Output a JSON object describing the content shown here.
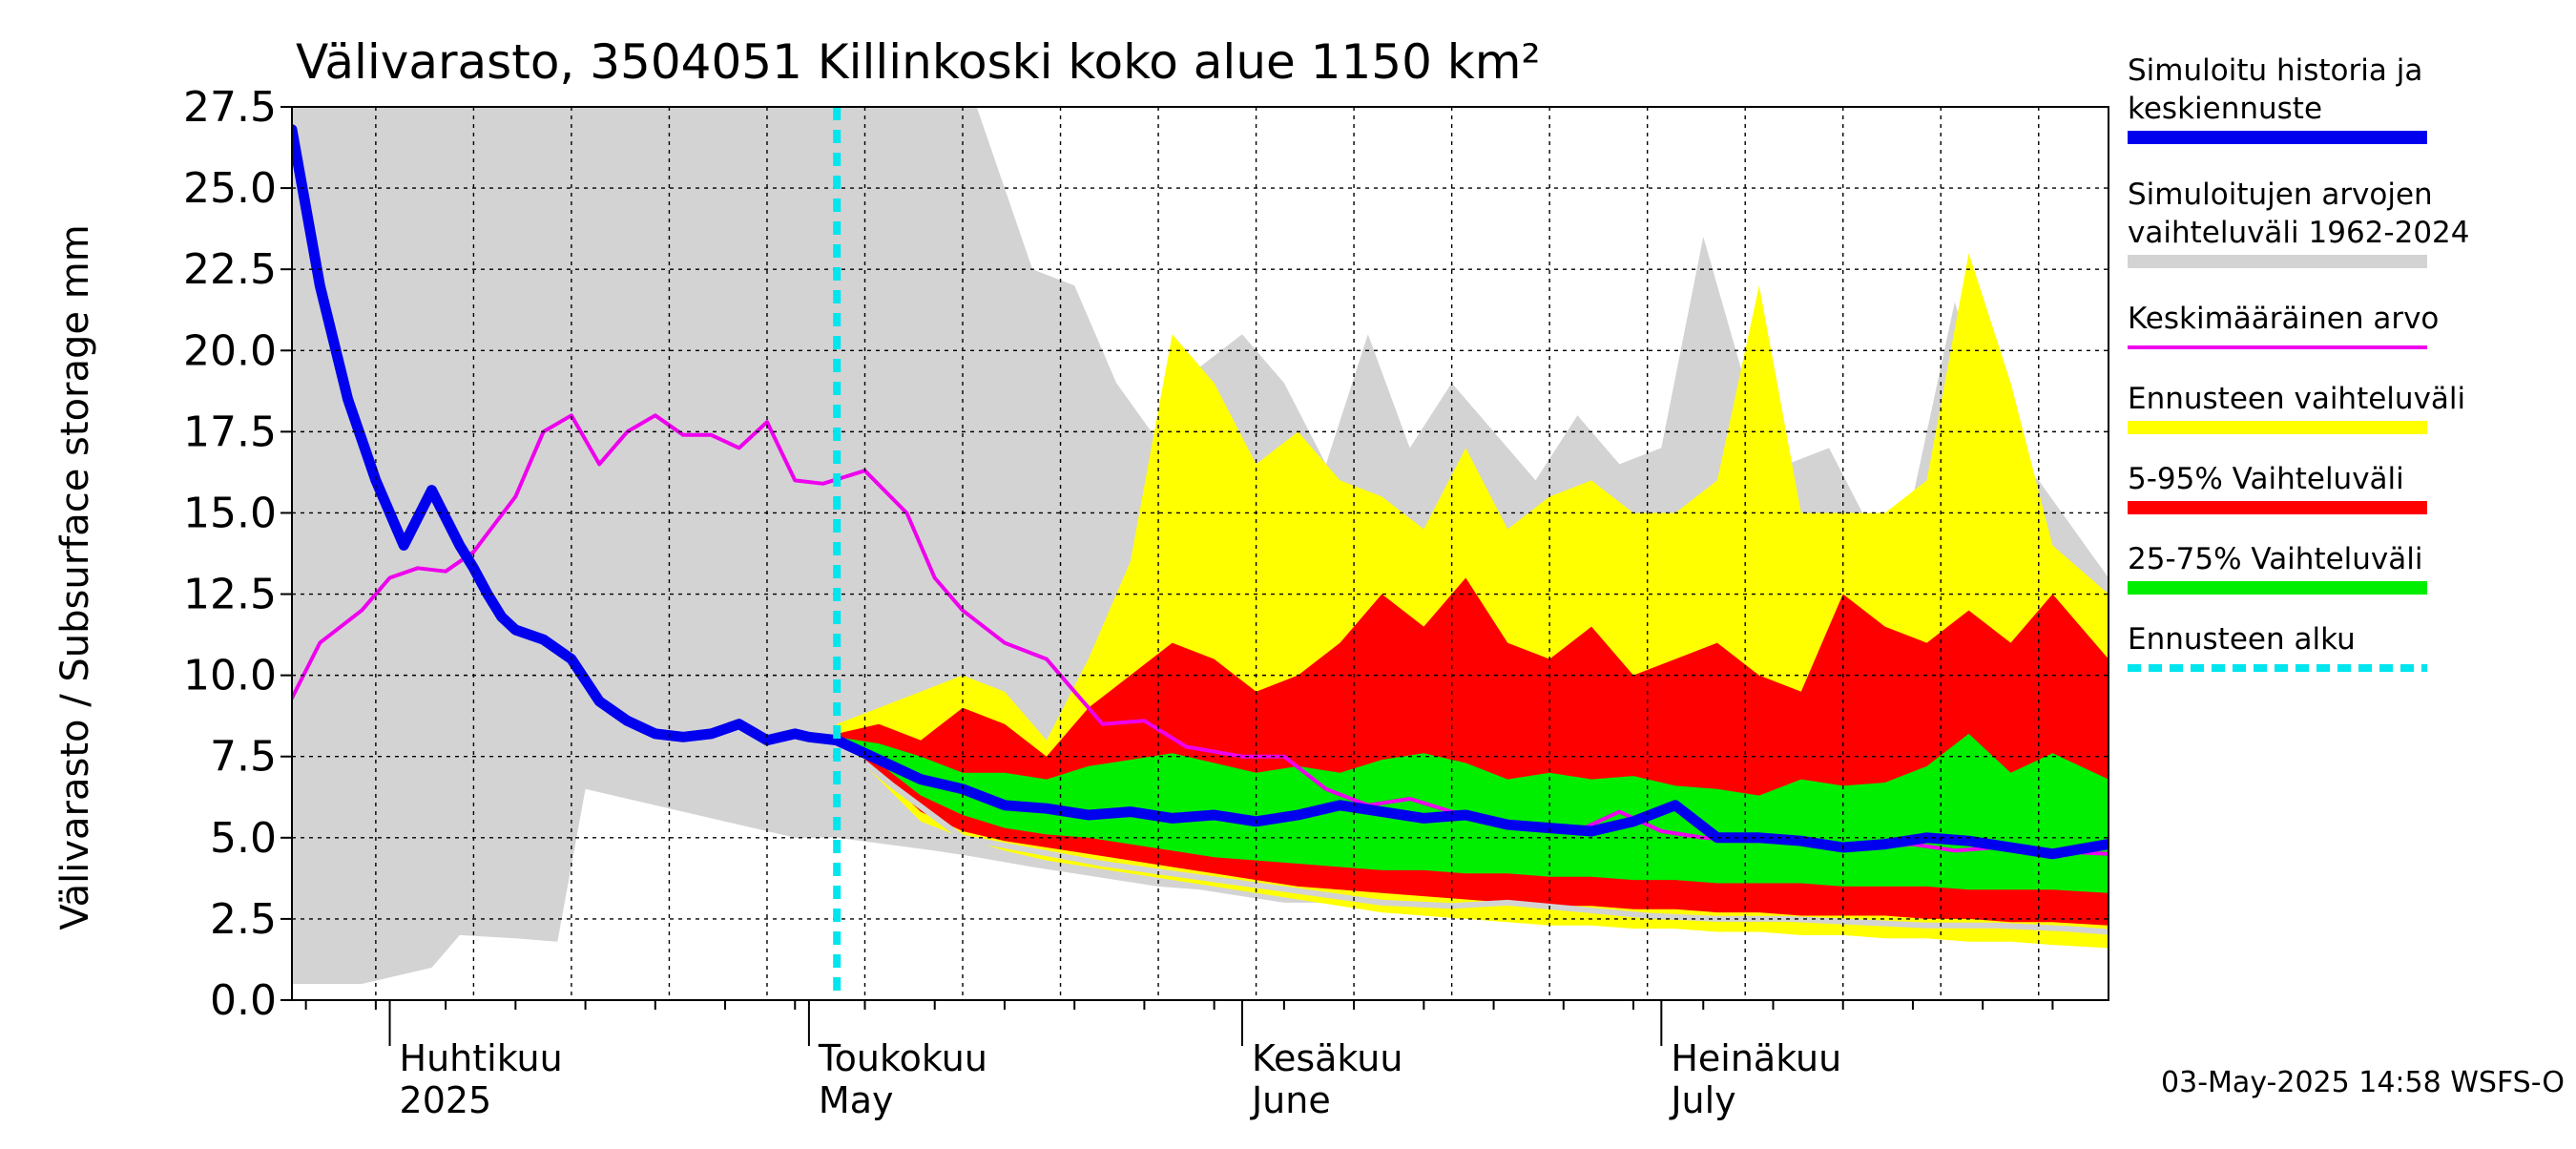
{
  "chart_data": {
    "type": "area",
    "title": "Välivarasto, 3504051 Killinkoski koko alue 1150 km²",
    "ylabel": "Välivarasto / Subsurface storage  mm",
    "ylim": [
      0,
      27.5
    ],
    "yticks": [
      0.0,
      2.5,
      5.0,
      7.5,
      10.0,
      12.5,
      15.0,
      17.5,
      20.0,
      22.5,
      25.0,
      27.5
    ],
    "ytick_labels": [
      "0.0",
      "2.5",
      "5.0",
      "7.5",
      "10.0",
      "12.5",
      "15.0",
      "17.5",
      "20.0",
      "22.5",
      "25.0",
      "27.5"
    ],
    "xlim": [
      "2025-03-25",
      "2025-08-02"
    ],
    "month_labels": [
      {
        "date": "2025-04-01",
        "fi": "Huhtikuu",
        "en": "2025"
      },
      {
        "date": "2025-05-01",
        "fi": "Toukokuu",
        "en": "May"
      },
      {
        "date": "2025-06-01",
        "fi": "Kesäkuu",
        "en": "June"
      },
      {
        "date": "2025-07-01",
        "fi": "Heinäkuu",
        "en": "July"
      }
    ],
    "forecast_start": "2025-05-03",
    "grid": true,
    "legend_position": "right",
    "legend": [
      {
        "label_lines": [
          "Simuloitu historia ja",
          "keskiennuste"
        ],
        "color": "#0000ee",
        "style": "thick-line"
      },
      {
        "label_lines": [
          "Simuloitujen arvojen",
          "vaihteluväli 1962-2024"
        ],
        "color": "#d3d3d3",
        "style": "band"
      },
      {
        "label_lines": [
          "Keskimääräinen arvo"
        ],
        "color": "#ee00ee",
        "style": "line"
      },
      {
        "label_lines": [
          "Ennusteen vaihteluväli"
        ],
        "color": "#ffff00",
        "style": "band"
      },
      {
        "label_lines": [
          "5-95% Vaihteluväli"
        ],
        "color": "#ff0000",
        "style": "band"
      },
      {
        "label_lines": [
          "25-75% Vaihteluväli"
        ],
        "color": "#00ee00",
        "style": "band"
      },
      {
        "label_lines": [
          "Ennusteen alku"
        ],
        "color": "#00e5ee",
        "style": "dashed"
      }
    ],
    "series": [
      {
        "name": "Simuloitujen arvojen vaihteluväli 1962-2024",
        "type": "band",
        "color": "#d3d3d3",
        "x": [
          "2025-03-25",
          "2025-03-30",
          "2025-04-04",
          "2025-04-06",
          "2025-04-10",
          "2025-04-13",
          "2025-04-15",
          "2025-04-30",
          "2025-05-03",
          "2025-05-10",
          "2025-05-13",
          "2025-05-17",
          "2025-05-20",
          "2025-05-23",
          "2025-05-26",
          "2025-05-29",
          "2025-06-01",
          "2025-06-04",
          "2025-06-07",
          "2025-06-10",
          "2025-06-13",
          "2025-06-16",
          "2025-06-19",
          "2025-06-22",
          "2025-06-25",
          "2025-06-28",
          "2025-07-01",
          "2025-07-04",
          "2025-07-07",
          "2025-07-10",
          "2025-07-13",
          "2025-07-16",
          "2025-07-19",
          "2025-07-22",
          "2025-07-25",
          "2025-07-28",
          "2025-08-02"
        ],
        "low": [
          0.5,
          0.5,
          1.0,
          2.0,
          1.9,
          1.8,
          6.5,
          5.0,
          5.0,
          4.6,
          4.4,
          4.1,
          3.9,
          3.7,
          3.5,
          3.4,
          3.2,
          3.0,
          3.0,
          2.9,
          2.8,
          2.7,
          2.6,
          2.5,
          2.4,
          2.4,
          2.4,
          2.3,
          2.3,
          2.2,
          2.2,
          2.1,
          2.0,
          2.0,
          1.9,
          1.9,
          1.8
        ],
        "high": [
          27.5,
          27.5,
          27.5,
          27.5,
          27.5,
          27.5,
          27.5,
          27.5,
          27.5,
          27.5,
          27.5,
          22.5,
          22.0,
          19.0,
          17.2,
          19.5,
          20.5,
          19.0,
          16.5,
          20.5,
          17.0,
          19.0,
          17.5,
          16.0,
          18.0,
          16.5,
          17.0,
          23.5,
          19.0,
          16.5,
          17.0,
          14.5,
          15.5,
          21.5,
          17.0,
          16.0,
          13.0
        ]
      },
      {
        "name": "Ennusteen vaihteluväli",
        "type": "band",
        "color": "#ffff00",
        "x": [
          "2025-05-03",
          "2025-05-06",
          "2025-05-09",
          "2025-05-12",
          "2025-05-15",
          "2025-05-18",
          "2025-05-21",
          "2025-05-24",
          "2025-05-27",
          "2025-05-30",
          "2025-06-02",
          "2025-06-05",
          "2025-06-08",
          "2025-06-11",
          "2025-06-14",
          "2025-06-17",
          "2025-06-20",
          "2025-06-23",
          "2025-06-26",
          "2025-06-29",
          "2025-07-02",
          "2025-07-05",
          "2025-07-08",
          "2025-07-11",
          "2025-07-14",
          "2025-07-17",
          "2025-07-20",
          "2025-07-23",
          "2025-07-26",
          "2025-07-29",
          "2025-08-02"
        ],
        "low": [
          8.0,
          6.8,
          5.5,
          5.0,
          4.6,
          4.3,
          4.1,
          3.9,
          3.7,
          3.5,
          3.3,
          3.1,
          2.9,
          2.7,
          2.6,
          2.5,
          2.4,
          2.3,
          2.3,
          2.2,
          2.2,
          2.1,
          2.1,
          2.0,
          2.0,
          1.9,
          1.9,
          1.8,
          1.8,
          1.7,
          1.6
        ],
        "high": [
          8.5,
          9.0,
          9.5,
          10.0,
          9.5,
          8.0,
          10.5,
          13.5,
          20.5,
          19.0,
          16.5,
          17.5,
          16.0,
          15.5,
          14.5,
          17.0,
          14.5,
          15.5,
          16.0,
          15.0,
          15.0,
          16.0,
          22.0,
          15.0,
          15.0,
          15.0,
          16.0,
          23.0,
          19.0,
          14.0,
          12.5
        ]
      },
      {
        "name": "5-95% Vaihteluväli",
        "type": "band",
        "color": "#ff0000",
        "x": [
          "2025-05-03",
          "2025-05-06",
          "2025-05-09",
          "2025-05-12",
          "2025-05-15",
          "2025-05-18",
          "2025-05-21",
          "2025-05-24",
          "2025-05-27",
          "2025-05-30",
          "2025-06-02",
          "2025-06-05",
          "2025-06-08",
          "2025-06-11",
          "2025-06-14",
          "2025-06-17",
          "2025-06-20",
          "2025-06-23",
          "2025-06-26",
          "2025-06-29",
          "2025-07-02",
          "2025-07-05",
          "2025-07-08",
          "2025-07-11",
          "2025-07-14",
          "2025-07-17",
          "2025-07-20",
          "2025-07-23",
          "2025-07-26",
          "2025-07-29",
          "2025-08-02"
        ],
        "low": [
          8.0,
          7.0,
          5.8,
          5.2,
          4.9,
          4.7,
          4.5,
          4.3,
          4.1,
          3.9,
          3.7,
          3.5,
          3.4,
          3.3,
          3.2,
          3.1,
          3.0,
          2.9,
          2.9,
          2.8,
          2.8,
          2.7,
          2.7,
          2.6,
          2.6,
          2.6,
          2.5,
          2.5,
          2.4,
          2.4,
          2.3
        ],
        "high": [
          8.2,
          8.5,
          8.0,
          9.0,
          8.5,
          7.5,
          9.0,
          10.0,
          11.0,
          10.5,
          9.5,
          10.0,
          11.0,
          12.5,
          11.5,
          13.0,
          11.0,
          10.5,
          11.5,
          10.0,
          10.5,
          11.0,
          10.0,
          9.5,
          12.5,
          11.5,
          11.0,
          12.0,
          11.0,
          12.5,
          10.5
        ]
      },
      {
        "name": "25-75% Vaihteluväli",
        "type": "band",
        "color": "#00ee00",
        "x": [
          "2025-05-03",
          "2025-05-06",
          "2025-05-09",
          "2025-05-12",
          "2025-05-15",
          "2025-05-18",
          "2025-05-21",
          "2025-05-24",
          "2025-05-27",
          "2025-05-30",
          "2025-06-02",
          "2025-06-05",
          "2025-06-08",
          "2025-06-11",
          "2025-06-14",
          "2025-06-17",
          "2025-06-20",
          "2025-06-23",
          "2025-06-26",
          "2025-06-29",
          "2025-07-02",
          "2025-07-05",
          "2025-07-08",
          "2025-07-11",
          "2025-07-14",
          "2025-07-17",
          "2025-07-20",
          "2025-07-23",
          "2025-07-26",
          "2025-07-29",
          "2025-08-02"
        ],
        "low": [
          8.0,
          7.3,
          6.3,
          5.7,
          5.3,
          5.1,
          5.0,
          4.8,
          4.6,
          4.4,
          4.3,
          4.2,
          4.1,
          4.0,
          4.0,
          3.9,
          3.9,
          3.8,
          3.8,
          3.7,
          3.7,
          3.6,
          3.6,
          3.6,
          3.5,
          3.5,
          3.5,
          3.4,
          3.4,
          3.4,
          3.3
        ],
        "high": [
          8.1,
          7.9,
          7.5,
          7.0,
          7.0,
          6.8,
          7.2,
          7.4,
          7.6,
          7.3,
          7.0,
          7.2,
          7.0,
          7.4,
          7.6,
          7.3,
          6.8,
          7.0,
          6.8,
          6.9,
          6.6,
          6.5,
          6.3,
          6.8,
          6.6,
          6.7,
          7.2,
          8.2,
          7.0,
          7.6,
          6.8
        ]
      },
      {
        "name": "Keskimääräinen arvo",
        "type": "line",
        "color": "#ee00ee",
        "x": [
          "2025-03-25",
          "2025-03-27",
          "2025-03-30",
          "2025-04-01",
          "2025-04-03",
          "2025-04-05",
          "2025-04-07",
          "2025-04-10",
          "2025-04-12",
          "2025-04-14",
          "2025-04-16",
          "2025-04-18",
          "2025-04-20",
          "2025-04-22",
          "2025-04-24",
          "2025-04-26",
          "2025-04-28",
          "2025-04-30",
          "2025-05-02",
          "2025-05-05",
          "2025-05-08",
          "2025-05-10",
          "2025-05-12",
          "2025-05-15",
          "2025-05-18",
          "2025-05-20",
          "2025-05-22",
          "2025-05-25",
          "2025-05-28",
          "2025-06-01",
          "2025-06-04",
          "2025-06-07",
          "2025-06-10",
          "2025-06-13",
          "2025-06-16",
          "2025-06-19",
          "2025-06-22",
          "2025-06-25",
          "2025-06-28",
          "2025-07-01",
          "2025-07-04",
          "2025-07-07",
          "2025-07-10",
          "2025-07-13",
          "2025-07-16",
          "2025-07-19",
          "2025-07-22",
          "2025-07-25",
          "2025-07-28",
          "2025-08-02"
        ],
        "y": [
          9.3,
          11.0,
          12.0,
          13.0,
          13.3,
          13.2,
          13.8,
          15.5,
          17.5,
          18.0,
          16.5,
          17.5,
          18.0,
          17.4,
          17.4,
          17.0,
          17.8,
          16.0,
          15.9,
          16.3,
          15.0,
          13.0,
          12.0,
          11.0,
          10.5,
          9.5,
          8.5,
          8.6,
          7.8,
          7.5,
          7.5,
          6.5,
          6.0,
          6.2,
          5.8,
          5.6,
          5.3,
          5.2,
          5.8,
          5.2,
          5.0,
          4.9,
          4.9,
          4.8,
          4.7,
          4.8,
          4.6,
          4.7,
          4.6,
          4.5
        ]
      },
      {
        "name": "Simuloitu historia ja keskiennuste",
        "type": "line",
        "color": "#0000ee",
        "x": [
          "2025-03-25",
          "2025-03-27",
          "2025-03-29",
          "2025-03-31",
          "2025-04-02",
          "2025-04-04",
          "2025-04-06",
          "2025-04-07",
          "2025-04-08",
          "2025-04-09",
          "2025-04-10",
          "2025-04-12",
          "2025-04-14",
          "2025-04-16",
          "2025-04-18",
          "2025-04-20",
          "2025-04-22",
          "2025-04-24",
          "2025-04-26",
          "2025-04-28",
          "2025-04-30",
          "2025-05-01",
          "2025-05-03",
          "2025-05-06",
          "2025-05-09",
          "2025-05-12",
          "2025-05-15",
          "2025-05-18",
          "2025-05-21",
          "2025-05-24",
          "2025-05-27",
          "2025-05-30",
          "2025-06-02",
          "2025-06-05",
          "2025-06-08",
          "2025-06-11",
          "2025-06-14",
          "2025-06-17",
          "2025-06-20",
          "2025-06-23",
          "2025-06-26",
          "2025-06-29",
          "2025-07-02",
          "2025-07-05",
          "2025-07-08",
          "2025-07-11",
          "2025-07-14",
          "2025-07-17",
          "2025-07-20",
          "2025-07-23",
          "2025-07-26",
          "2025-07-29",
          "2025-08-02"
        ],
        "y": [
          26.8,
          22.0,
          18.5,
          16.0,
          14.0,
          15.7,
          14.0,
          13.3,
          12.5,
          11.8,
          11.4,
          11.1,
          10.5,
          9.2,
          8.6,
          8.2,
          8.1,
          8.2,
          8.5,
          8.0,
          8.2,
          8.1,
          8.0,
          7.4,
          6.8,
          6.5,
          6.0,
          5.9,
          5.7,
          5.8,
          5.6,
          5.7,
          5.5,
          5.7,
          6.0,
          5.8,
          5.6,
          5.7,
          5.4,
          5.3,
          5.2,
          5.5,
          6.0,
          5.0,
          5.0,
          4.9,
          4.7,
          4.8,
          5.0,
          4.9,
          4.7,
          4.5,
          4.8
        ]
      },
      {
        "name": "Simuloitujen arvojen mediaani",
        "type": "line",
        "color": "#d3d3d3",
        "x": [
          "2025-05-03",
          "2025-05-07",
          "2025-05-12",
          "2025-05-17",
          "2025-05-22",
          "2025-05-27",
          "2025-06-01",
          "2025-06-06",
          "2025-06-11",
          "2025-06-16",
          "2025-06-20",
          "2025-06-25",
          "2025-06-30",
          "2025-07-05",
          "2025-07-10",
          "2025-07-15",
          "2025-07-20",
          "2025-07-25",
          "2025-07-30",
          "2025-08-02"
        ],
        "y": [
          8.0,
          6.6,
          5.0,
          4.6,
          4.2,
          3.9,
          3.6,
          3.3,
          3.0,
          2.9,
          3.0,
          2.8,
          2.6,
          2.5,
          2.5,
          2.4,
          2.3,
          2.3,
          2.2,
          2.1
        ]
      }
    ],
    "footer": "03-May-2025 14:58 WSFS-O"
  }
}
